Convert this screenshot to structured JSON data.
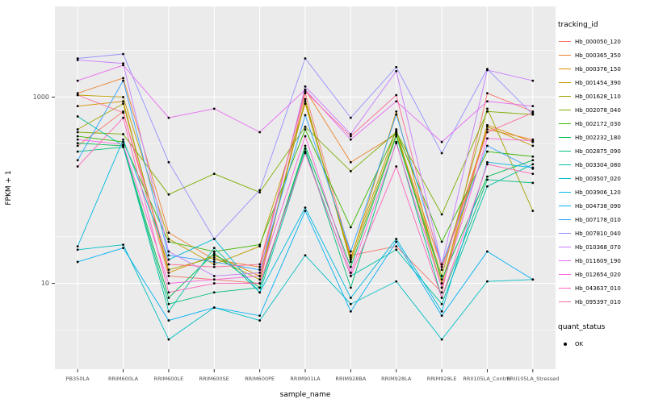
{
  "styles": {
    "panel_bg": "#EBEBEB",
    "grid": "#FFFFFF",
    "point": "#000000",
    "tick_text": "#4D4D4D"
  },
  "chart_data": {
    "type": "line",
    "title": "",
    "xlabel": "sample_name",
    "ylabel": "FPKM + 1",
    "y_scale": "log10",
    "ylim": [
      1.2,
      9400
    ],
    "y_ticks": [
      10,
      1000
    ],
    "y_minor_ticks": [
      3.162,
      31.62,
      316.2,
      3162
    ],
    "grid": "on",
    "legend_position": "right",
    "legend_titles": {
      "series": "tracking_id",
      "quant": "quant_status"
    },
    "quant_status_items": [
      {
        "label": "OK"
      }
    ],
    "x_categories": [
      "PB350LA",
      "RRIM600LA",
      "RRIM600LE",
      "RRIM600SE",
      "RRIM600PE",
      "RRIM901LA",
      "RRIM928BA",
      "RRIM928LA",
      "RRIM928LE",
      "RRII105LA_Control",
      "RRII105LA_Stressed"
    ],
    "series": [
      {
        "name": "Hb_000050_120",
        "color": "#F8766D",
        "values": [
          300,
          700,
          12,
          11,
          10,
          1100,
          20,
          25,
          8,
          1100,
          700
        ]
      },
      {
        "name": "Hb_000365_350",
        "color": "#EA8331",
        "values": [
          1100,
          1600,
          35,
          18,
          15,
          1200,
          200,
          400,
          15,
          450,
          350
        ]
      },
      {
        "name": "Hb_000376_150",
        "color": "#D89000",
        "values": [
          800,
          900,
          13,
          20,
          12,
          900,
          18,
          700,
          10,
          500,
          330
        ]
      },
      {
        "name": "Hb_001454_390",
        "color": "#C09B00",
        "values": [
          1050,
          1000,
          30,
          16,
          25,
          850,
          19,
          450,
          9,
          480,
          300
        ]
      },
      {
        "name": "Hb_001628_110",
        "color": "#A3A500",
        "values": [
          450,
          850,
          14,
          19,
          11,
          950,
          17,
          400,
          12,
          750,
          60
        ]
      },
      {
        "name": "Hb_002078_040",
        "color": "#7CAE00",
        "values": [
          420,
          400,
          90,
          150,
          95,
          480,
          160,
          420,
          55,
          700,
          650
        ]
      },
      {
        "name": "Hb_002172_030",
        "color": "#39B600",
        "values": [
          380,
          330,
          28,
          22,
          26,
          450,
          40,
          430,
          28,
          260,
          230
        ]
      },
      {
        "name": "Hb_002232_180",
        "color": "#00BB4E",
        "values": [
          320,
          300,
          7,
          21,
          9,
          300,
          15,
          380,
          11,
          140,
          210
        ]
      },
      {
        "name": "Hb_002875_090",
        "color": "#00BF7D",
        "values": [
          260,
          290,
          6,
          8,
          9,
          280,
          9,
          330,
          7,
          130,
          120
        ]
      },
      {
        "name": "Hb_003304_080",
        "color": "#00C1A3",
        "values": [
          620,
          300,
          5,
          24,
          8,
          260,
          12,
          23,
          6,
          110,
          190
        ]
      },
      {
        "name": "Hb_003507_020",
        "color": "#00BFC4",
        "values": [
          23,
          26,
          2.5,
          5.5,
          4,
          20,
          6,
          10.5,
          2.5,
          10.5,
          11
        ]
      },
      {
        "name": "Hb_003906_120",
        "color": "#00BAE0",
        "values": [
          25,
          350,
          18,
          30,
          8,
          65,
          7,
          30,
          5,
          200,
          175
        ]
      },
      {
        "name": "Hb_004738_090",
        "color": "#00B0F6",
        "values": [
          17,
          24,
          4,
          5.5,
          4.5,
          60,
          5,
          28,
          4.5,
          22,
          11
        ]
      },
      {
        "name": "Hb_007178_010",
        "color": "#35A2FF",
        "values": [
          210,
          1500,
          20,
          17,
          14,
          640,
          22,
          650,
          16,
          300,
          170
        ]
      },
      {
        "name": "Hb_007810_040",
        "color": "#9590FF",
        "values": [
          2600,
          2900,
          200,
          30,
          100,
          2600,
          600,
          2100,
          250,
          2000,
          650
        ]
      },
      {
        "name": "Hb_010368_070",
        "color": "#C77CFF",
        "values": [
          2500,
          2300,
          22,
          12,
          13,
          1300,
          400,
          1900,
          16,
          1950,
          1500
        ]
      },
      {
        "name": "Hb_011609_190",
        "color": "#E76BF3",
        "values": [
          1500,
          2200,
          600,
          750,
          420,
          1200,
          350,
          900,
          330,
          900,
          800
        ]
      },
      {
        "name": "Hb_012654_020",
        "color": "#FA62DB",
        "values": [
          350,
          310,
          10,
          11,
          12,
          380,
          13,
          320,
          9,
          360,
          340
        ]
      },
      {
        "name": "Hb_043637_010",
        "color": "#FF62BC",
        "values": [
          180,
          600,
          8,
          10,
          10,
          250,
          12,
          180,
          7,
          190,
          150
        ]
      },
      {
        "name": "Hb_095397_010",
        "color": "#FF6A98",
        "values": [
          1050,
          680,
          16,
          15,
          16,
          1150,
          380,
          1050,
          14,
          420,
          680
        ]
      }
    ]
  }
}
